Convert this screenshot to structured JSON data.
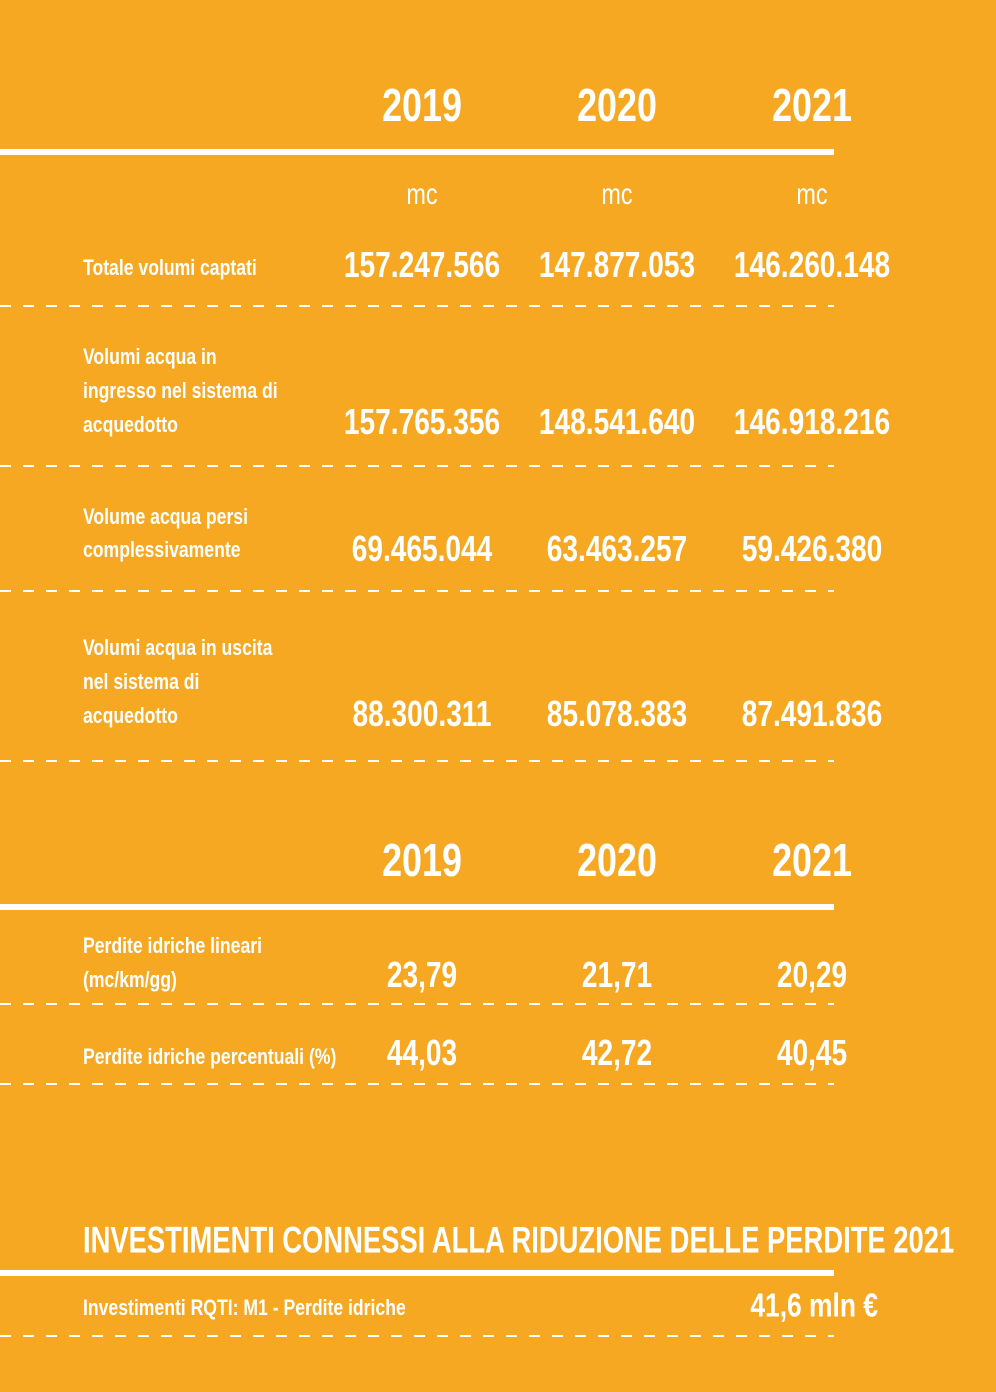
{
  "table1": {
    "years": [
      "2019",
      "2020",
      "2021"
    ],
    "units": [
      "mc",
      "mc",
      "mc"
    ],
    "rows": [
      {
        "label": [
          "Totale volumi captati"
        ],
        "values": [
          "157.247.566",
          "147.877.053",
          "146.260.148"
        ]
      },
      {
        "label": [
          "Volumi acqua in",
          "ingresso nel sistema di",
          "acquedotto"
        ],
        "values": [
          "157.765.356",
          "148.541.640",
          "146.918.216"
        ]
      },
      {
        "label": [
          "Volume acqua persi",
          "complessivamente"
        ],
        "values": [
          "69.465.044",
          "63.463.257",
          "59.426.380"
        ]
      },
      {
        "label": [
          "Volumi acqua in uscita",
          "nel sistema di",
          "acquedotto"
        ],
        "values": [
          "88.300.311",
          "85.078.383",
          "87.491.836"
        ]
      }
    ]
  },
  "table2": {
    "years": [
      "2019",
      "2020",
      "2021"
    ],
    "rows": [
      {
        "label": [
          "Perdite idriche lineari",
          "(mc/km/gg)"
        ],
        "values": [
          "23,79",
          "21,71",
          "20,29"
        ]
      },
      {
        "label": [
          "Perdite idriche percentuali (%)"
        ],
        "values": [
          "44,03",
          "42,72",
          "40,45"
        ]
      }
    ]
  },
  "investments": {
    "title": "INVESTIMENTI CONNESSI ALLA RIDUZIONE DELLE PERDITE 2021",
    "label": "Investimenti RQTI: M1 - Perdite idriche",
    "value": "41,6 mln €"
  }
}
